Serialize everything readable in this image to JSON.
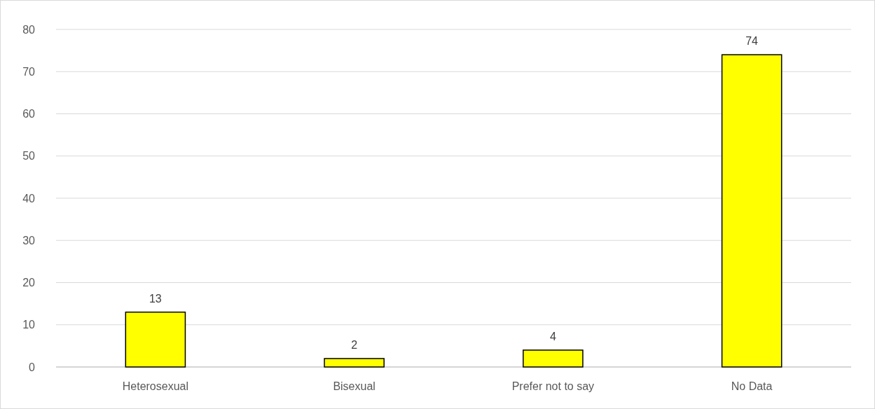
{
  "chart_data": {
    "type": "bar",
    "categories": [
      "Heterosexual",
      "Bisexual",
      "Prefer not to say",
      "No Data"
    ],
    "values": [
      13,
      2,
      4,
      74
    ],
    "color": "#ffff00",
    "ylim": [
      0,
      80
    ],
    "yticks": [
      0,
      10,
      20,
      30,
      40,
      50,
      60,
      70,
      80
    ],
    "grid": "y",
    "data_labels": true
  }
}
